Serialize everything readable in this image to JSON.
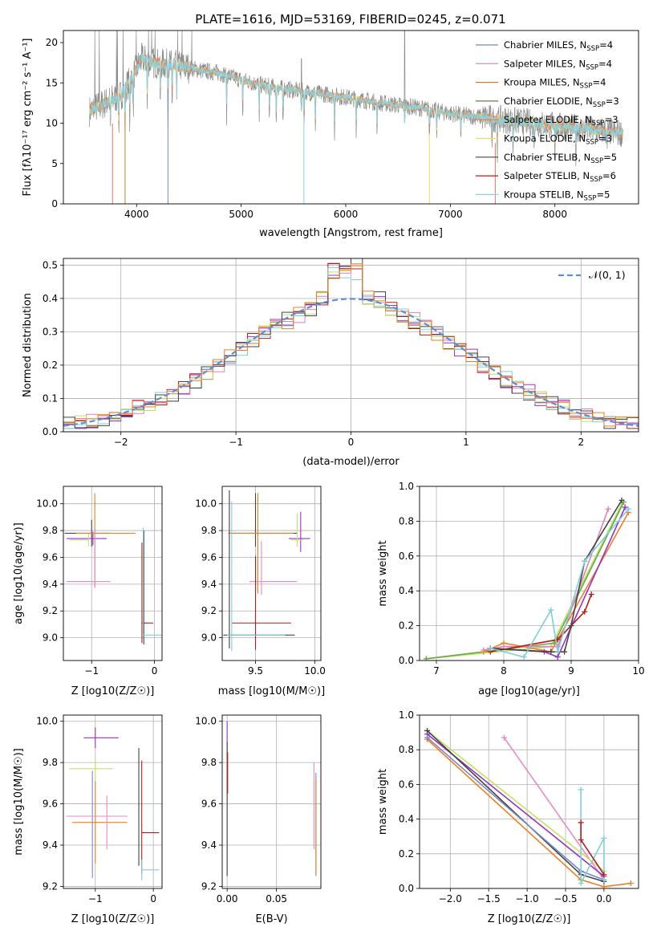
{
  "figure_title": "PLATE=1616, MJD=53169, FIBERID=0245, z=0.071",
  "colors": {
    "Chabrier MILES": "#7b88c9",
    "Salpeter MILES": "#e57fb8",
    "Kroupa MILES": "#c9842a",
    "Chabrier ELODIE": "#5e7e5e",
    "Salpeter ELODIE": "#ef7a55",
    "Kroupa ELODIE": "#e8e05a",
    "Chabrier STELIB": "#444444",
    "Salpeter STELIB": "#b71c1c",
    "Kroupa STELIB": "#84d4e6",
    "data": "#8c8c8c",
    "normal": "#5b8fd6",
    "purple": "#9b30c8",
    "orange": "#f07f1e",
    "lime": "#bfe660",
    "green": "#6aa84f",
    "pink": "#e88bc2",
    "cyan": "#7fcfd8",
    "red": "#b71c1c",
    "dark": "#444444"
  },
  "legend_labels": [
    {
      "name": "Chabrier MILES",
      "text": "Chabrier MILES, N",
      "sub": "SSP",
      "suffix": "=4"
    },
    {
      "name": "Salpeter MILES",
      "text": "Salpeter MILES, N",
      "sub": "SSP",
      "suffix": "=4"
    },
    {
      "name": "Kroupa MILES",
      "text": "Kroupa MILES, N",
      "sub": "SSP",
      "suffix": "=4"
    },
    {
      "name": "Chabrier ELODIE",
      "text": "Chabrier ELODIE, N",
      "sub": "SSP",
      "suffix": "=3"
    },
    {
      "name": "Salpeter ELODIE",
      "text": "Salpeter ELODIE, N",
      "sub": "SSP",
      "suffix": "=3"
    },
    {
      "name": "Kroupa ELODIE",
      "text": "Kroupa ELODIE, N",
      "sub": "SSP",
      "suffix": "=3"
    },
    {
      "name": "Chabrier STELIB",
      "text": "Chabrier STELIB, N",
      "sub": "SSP",
      "suffix": "=5"
    },
    {
      "name": "Salpeter STELIB",
      "text": "Salpeter STELIB, N",
      "sub": "SSP",
      "suffix": "=6"
    },
    {
      "name": "Kroupa STELIB",
      "text": "Kroupa STELIB, N",
      "sub": "SSP",
      "suffix": "=5"
    }
  ],
  "chart_data": [
    {
      "id": "spectrum",
      "type": "line",
      "title": "PLATE=1616, MJD=53169, FIBERID=0245, z=0.071",
      "xlabel": "wavelength [Angstrom, rest frame]",
      "ylabel": "Flux [fλ10⁻¹⁷ erg cm⁻² s⁻¹ A⁻¹]",
      "xlim": [
        3300,
        8800
      ],
      "ylim": [
        0,
        21.5
      ],
      "xticks": [
        4000,
        5000,
        6000,
        7000,
        8000
      ],
      "yticks": [
        0,
        5,
        10,
        15,
        20
      ],
      "grid": false,
      "legend_position": "upper-right",
      "continuum": [
        [
          3550,
          11.5
        ],
        [
          3700,
          12.5
        ],
        [
          3850,
          13.5
        ],
        [
          3950,
          15.5
        ],
        [
          4050,
          18
        ],
        [
          4150,
          17.5
        ],
        [
          4300,
          17.3
        ],
        [
          4450,
          17
        ],
        [
          4600,
          16.6
        ],
        [
          4800,
          16.2
        ],
        [
          5000,
          15.4
        ],
        [
          5200,
          14.7
        ],
        [
          5400,
          14.3
        ],
        [
          5600,
          13.9
        ],
        [
          5800,
          13.6
        ],
        [
          6000,
          13.2
        ],
        [
          6200,
          12.8
        ],
        [
          6400,
          12.4
        ],
        [
          6600,
          12.1
        ],
        [
          6800,
          11.7
        ],
        [
          7000,
          11.2
        ],
        [
          7200,
          10.9
        ],
        [
          7400,
          10.6
        ],
        [
          7600,
          10.3
        ],
        [
          7800,
          10.0
        ],
        [
          8000,
          9.7
        ],
        [
          8200,
          9.4
        ],
        [
          8400,
          9.1
        ],
        [
          8600,
          8.8
        ]
      ],
      "absorption_lines": [
        3750,
        3830,
        3890,
        3934,
        3968,
        4102,
        4227,
        4300,
        4340,
        4384,
        4861,
        5015,
        5173,
        5270,
        5335,
        5400,
        5577,
        5603,
        5710,
        5893,
        6100,
        6300,
        6563,
        6800,
        6870,
        7100,
        7400,
        7450,
        7600,
        7800,
        8000,
        8200,
        8500
      ],
      "emission_lines": [
        [
          6563,
          21.5
        ],
        [
          5577,
          18
        ]
      ]
    },
    {
      "id": "residuals",
      "type": "histogram",
      "xlabel": "(data-model)/error",
      "ylabel": "Normed distribution",
      "xlim": [
        -2.5,
        2.5
      ],
      "ylim": [
        0,
        0.52
      ],
      "xticks": [
        -2,
        -1,
        0,
        1,
        2
      ],
      "yticks": [
        0.0,
        0.1,
        0.2,
        0.3,
        0.4,
        0.5
      ],
      "grid": true,
      "legend": [
        {
          "name": "N(0,1)",
          "label": "𝒩(0, 1)",
          "style": "dashed"
        }
      ],
      "legend_position": "upper-right",
      "bin_width": 0.1,
      "series_colors": [
        "#9b30c8",
        "#e57fb8",
        "#b71c1c",
        "#c0e060",
        "#7fcfd8",
        "#444444",
        "#f07f1e"
      ]
    },
    {
      "id": "age_vs_Z",
      "type": "errorbar",
      "xlabel": "Z [log10(Z/Z☉)]",
      "ylabel": "age  [log10(age/yr)]",
      "xlim": [
        -1.45,
        0.12
      ],
      "ylim": [
        8.83,
        10.13
      ],
      "xticks": [
        -1,
        0
      ],
      "yticks": [
        9.0,
        9.2,
        9.4,
        9.6,
        9.8,
        10.0
      ],
      "grid": true,
      "points": [
        {
          "x": -1.0,
          "y": 9.78,
          "xerr": [
            0.43,
            0.3
          ],
          "yerr": [
            0.1,
            0.1
          ],
          "color": "#444444"
        },
        {
          "x": -0.98,
          "y": 9.74,
          "xerr": [
            0.42,
            0.22
          ],
          "yerr": [
            0.05,
            0.05
          ],
          "color": "#9b30c8"
        },
        {
          "x": -1.05,
          "y": 9.73,
          "xerr": [
            0.3,
            0.0
          ],
          "yerr": [
            0.05,
            0.05
          ],
          "color": "#bfe660"
        },
        {
          "x": -0.95,
          "y": 9.78,
          "xerr": [
            0.3,
            0.65
          ],
          "yerr": [
            0.4,
            0.3
          ],
          "color": "#f07f1e"
        },
        {
          "x": -0.95,
          "y": 9.42,
          "xerr": [
            0.45,
            0.25
          ],
          "yerr": [
            0.05,
            0.4
          ],
          "color": "#e88bc2"
        },
        {
          "x": -0.2,
          "y": 9.11,
          "xerr": [
            0.0,
            0.18
          ],
          "yerr": [
            0.15,
            0.6
          ],
          "color": "#b71c1c"
        },
        {
          "x": -0.17,
          "y": 9.25,
          "xerr": [
            0.0,
            0.0
          ],
          "yerr": [
            0.3,
            0.55
          ],
          "color": "#444444"
        },
        {
          "x": -0.18,
          "y": 9.02,
          "xerr": [
            0.0,
            0.3
          ],
          "yerr": [
            0.03,
            0.8
          ],
          "color": "#7fcfd8"
        }
      ]
    },
    {
      "id": "age_vs_mass",
      "type": "errorbar",
      "xlabel": "mass [log10(M/M☉)]",
      "ylabel": "",
      "xlim": [
        9.22,
        10.05
      ],
      "ylim": [
        8.83,
        10.13
      ],
      "xticks": [
        9.5,
        10.0
      ],
      "yticks": [
        9.0,
        9.2,
        9.4,
        9.6,
        9.8,
        10.0
      ],
      "grid": true,
      "points": [
        {
          "x": 9.5,
          "y": 9.78,
          "xerr": [
            0.22,
            0.35
          ],
          "yerr": [
            0.1,
            0.3
          ],
          "color": "#444444"
        },
        {
          "x": 9.88,
          "y": 9.74,
          "xerr": [
            0.1,
            0.08
          ],
          "yerr": [
            0.1,
            0.2
          ],
          "color": "#9b30c8"
        },
        {
          "x": 9.85,
          "y": 9.73,
          "xerr": [
            0.05,
            0.05
          ],
          "yerr": [
            0.05,
            0.2
          ],
          "color": "#bfe660"
        },
        {
          "x": 9.52,
          "y": 9.78,
          "xerr": [
            0.25,
            0.3
          ],
          "yerr": [
            0.45,
            0.3
          ],
          "color": "#f07f1e"
        },
        {
          "x": 9.55,
          "y": 9.42,
          "xerr": [
            0.1,
            0.3
          ],
          "yerr": [
            0.1,
            0.3
          ],
          "color": "#e88bc2"
        },
        {
          "x": 9.5,
          "y": 9.11,
          "xerr": [
            0.2,
            0.3
          ],
          "yerr": [
            0.2,
            0.5
          ],
          "color": "#b71c1c"
        },
        {
          "x": 9.28,
          "y": 9.02,
          "xerr": [
            0.05,
            0.55
          ],
          "yerr": [
            0.1,
            1.08
          ],
          "color": "#444444"
        },
        {
          "x": 9.3,
          "y": 9.02,
          "xerr": [
            0.04,
            0.45
          ],
          "yerr": [
            0.12,
            1.0
          ],
          "color": "#7fcfd8"
        }
      ]
    },
    {
      "id": "weight_vs_age",
      "type": "line",
      "xlabel": "age  [log10(age/yr)]",
      "ylabel": "mass weight",
      "xlim": [
        6.75,
        10.0
      ],
      "ylim": [
        0.0,
        1.0
      ],
      "xticks": [
        7,
        8,
        9,
        10
      ],
      "yticks": [
        0.0,
        0.2,
        0.4,
        0.6,
        0.8,
        1.0
      ],
      "grid": true,
      "series": [
        {
          "color": "#bfe660",
          "points": [
            [
              6.85,
              0.01
            ],
            [
              8.7,
              0.08
            ],
            [
              9.75,
              0.9
            ]
          ]
        },
        {
          "color": "#6aa84f",
          "points": [
            [
              6.85,
              0.01
            ],
            [
              8.75,
              0.1
            ],
            [
              9.78,
              0.91
            ]
          ]
        },
        {
          "color": "#f07f1e",
          "points": [
            [
              7.7,
              0.05
            ],
            [
              8.0,
              0.1
            ],
            [
              8.7,
              0.05
            ],
            [
              9.85,
              0.85
            ]
          ]
        },
        {
          "color": "#e57fb8",
          "points": [
            [
              7.7,
              0.06
            ],
            [
              8.0,
              0.08
            ],
            [
              8.8,
              0.08
            ],
            [
              9.55,
              0.87
            ]
          ]
        },
        {
          "color": "#9b30c8",
          "points": [
            [
              7.8,
              0.07
            ],
            [
              8.6,
              0.05
            ],
            [
              8.8,
              0.02
            ],
            [
              9.8,
              0.88
            ]
          ]
        },
        {
          "color": "#b71c1c",
          "points": [
            [
              7.8,
              0.05
            ],
            [
              8.8,
              0.12
            ],
            [
              9.2,
              0.28
            ],
            [
              9.3,
              0.38
            ]
          ]
        },
        {
          "color": "#444444",
          "points": [
            [
              7.8,
              0.07
            ],
            [
              8.7,
              0.05
            ],
            [
              8.9,
              0.05
            ],
            [
              9.0,
              0.2
            ],
            [
              9.2,
              0.57
            ],
            [
              9.75,
              0.92
            ]
          ]
        },
        {
          "color": "#7fcfd8",
          "points": [
            [
              7.8,
              0.07
            ],
            [
              8.3,
              0.02
            ],
            [
              8.7,
              0.29
            ],
            [
              8.8,
              0.05
            ],
            [
              9.2,
              0.57
            ],
            [
              9.85,
              0.87
            ]
          ]
        }
      ]
    },
    {
      "id": "mass_vs_Z",
      "type": "errorbar",
      "xlabel": "Z [log10(Z/Z☉)]",
      "ylabel": "mass [log10(M/M☉)]",
      "xlim": [
        -1.55,
        0.15
      ],
      "ylim": [
        9.19,
        10.03
      ],
      "xticks": [
        -1,
        0
      ],
      "yticks": [
        9.2,
        9.4,
        9.6,
        9.8,
        10.0
      ],
      "grid": true,
      "points": [
        {
          "x": -1.0,
          "y": 9.92,
          "xerr": [
            0.2,
            0.4
          ],
          "yerr": [
            0.05,
            0.05
          ],
          "color": "#9b30c8"
        },
        {
          "x": -1.0,
          "y": 9.77,
          "xerr": [
            0.45,
            0.3
          ],
          "yerr": [
            0.05,
            0.05
          ],
          "color": "#bfe660"
        },
        {
          "x": -1.05,
          "y": 9.54,
          "xerr": [
            0.45,
            0.6
          ],
          "yerr": [
            0.3,
            0.22
          ],
          "color": "#7b88c9"
        },
        {
          "x": -1.0,
          "y": 9.51,
          "xerr": [
            0.4,
            0.55
          ],
          "yerr": [
            0.2,
            0.2
          ],
          "color": "#f07f1e"
        },
        {
          "x": -0.8,
          "y": 9.54,
          "xerr": [
            0.7,
            0.35
          ],
          "yerr": [
            0.16,
            0.1
          ],
          "color": "#e88bc2"
        },
        {
          "x": -0.2,
          "y": 9.46,
          "xerr": [
            0.0,
            0.3
          ],
          "yerr": [
            0.2,
            0.35
          ],
          "color": "#b71c1c"
        },
        {
          "x": -0.25,
          "y": 9.6,
          "xerr": [
            0.0,
            0.0
          ],
          "yerr": [
            0.3,
            0.27
          ],
          "color": "#444444"
        },
        {
          "x": -0.2,
          "y": 9.28,
          "xerr": [
            0.0,
            0.3
          ],
          "yerr": [
            0.05,
            0.05
          ],
          "color": "#7fcfd8"
        }
      ]
    },
    {
      "id": "mass_vs_EBV",
      "type": "errorbar",
      "xlabel": "E(B-V)",
      "ylabel": "",
      "xlim": [
        -0.005,
        0.095
      ],
      "ylim": [
        9.19,
        10.03
      ],
      "xticks": [
        0.0,
        0.05
      ],
      "xticklabels": [
        "0.00",
        "0.05"
      ],
      "yticks": [
        9.2,
        9.4,
        9.6,
        9.8,
        10.0
      ],
      "grid": true,
      "points": [
        {
          "x": 0.0,
          "y": 9.92,
          "yerr": [
            0.12,
            0.08
          ],
          "color": "#9b30c8"
        },
        {
          "x": 0.0,
          "y": 9.85,
          "yerr": [
            0.08,
            0.05
          ],
          "color": "#bfe660"
        },
        {
          "x": 0.0,
          "y": 9.55,
          "yerr": [
            0.3,
            0.3
          ],
          "color": "#7fcfd8"
        },
        {
          "x": 0.0,
          "y": 9.7,
          "yerr": [
            0.45,
            0.2
          ],
          "color": "#444444"
        },
        {
          "x": 0.0005,
          "y": 9.8,
          "yerr": [
            0.15,
            0.05
          ],
          "color": "#b71c1c"
        },
        {
          "x": 0.088,
          "y": 9.6,
          "yerr": [
            0.22,
            0.2
          ],
          "color": "#e88bc2"
        },
        {
          "x": 0.09,
          "y": 9.5,
          "yerr": [
            0.25,
            0.25
          ],
          "color": "#7b88c9"
        },
        {
          "x": 0.09,
          "y": 9.5,
          "yerr": [
            0.24,
            0.22
          ],
          "color": "#f07f1e"
        }
      ]
    },
    {
      "id": "weight_vs_Z",
      "type": "line",
      "xlabel": "Z [log10(Z/Z☉)]",
      "ylabel": "mass weight",
      "xlim": [
        -2.4,
        0.45
      ],
      "ylim": [
        0.0,
        1.0
      ],
      "xticks": [
        -2.0,
        -1.5,
        -1.0,
        -0.5,
        0.0
      ],
      "xticklabels": [
        "−2.0",
        "−1.5",
        "−1.0",
        "−0.5",
        "0.0"
      ],
      "yticks": [
        0.0,
        0.2,
        0.4,
        0.6,
        0.8,
        1.0
      ],
      "grid": true,
      "series": [
        {
          "color": "#e88bc2",
          "points": [
            [
              -1.3,
              0.87
            ],
            [
              0.0,
              0.05
            ]
          ]
        },
        {
          "color": "#9b30c8",
          "points": [
            [
              -2.3,
              0.89
            ],
            [
              0.0,
              0.07
            ]
          ]
        },
        {
          "color": "#bfe660",
          "points": [
            [
              -2.3,
              0.91
            ],
            [
              0.0,
              0.1
            ]
          ]
        },
        {
          "color": "#444444",
          "points": [
            [
              -2.3,
              0.91
            ],
            [
              -0.3,
              0.08
            ],
            [
              0.0,
              0.04
            ]
          ]
        },
        {
          "color": "#f07f1e",
          "points": [
            [
              -2.3,
              0.86
            ],
            [
              -0.3,
              0.05
            ],
            [
              0.0,
              0.01
            ],
            [
              0.35,
              0.03
            ]
          ]
        },
        {
          "color": "#7b88c9",
          "points": [
            [
              -2.3,
              0.87
            ],
            [
              -0.3,
              0.1
            ],
            [
              0.0,
              0.05
            ]
          ]
        },
        {
          "color": "#7fcfd8",
          "points": [
            [
              -0.3,
              0.57
            ],
            [
              -0.3,
              0.03
            ],
            [
              0.0,
              0.29
            ],
            [
              0.0,
              0.05
            ]
          ]
        },
        {
          "color": "#b71c1c",
          "points": [
            [
              -0.3,
              0.38
            ],
            [
              -0.3,
              0.28
            ],
            [
              0.0,
              0.08
            ]
          ]
        }
      ]
    }
  ]
}
